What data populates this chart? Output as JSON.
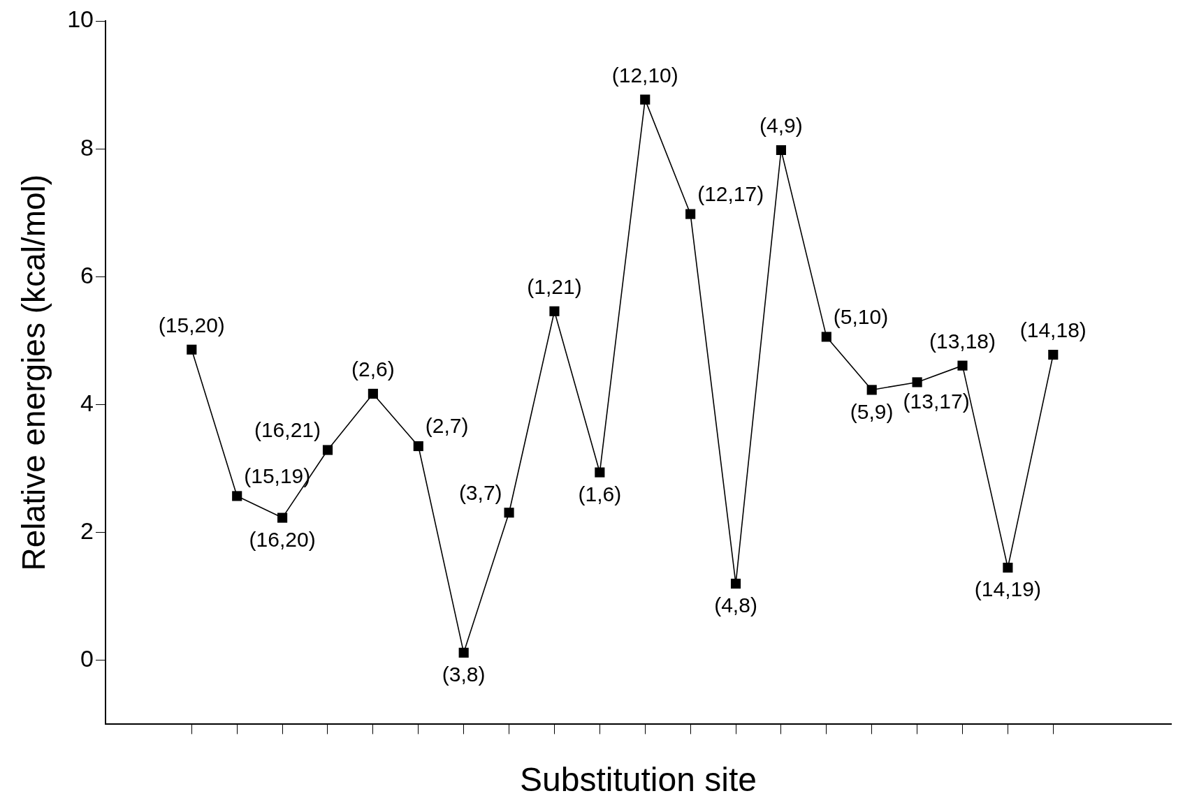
{
  "chart_data": {
    "type": "line",
    "xlabel": "Substitution site",
    "ylabel": "Relative energies (kcal/mol)",
    "categories": [
      null,
      null,
      null,
      null,
      null,
      null,
      null,
      null,
      null,
      null,
      null,
      null,
      null,
      null,
      null,
      null,
      null,
      null,
      null,
      null
    ],
    "annotations": [
      "(15,20)",
      "(15,19)",
      "(16,20)",
      "(16,21)",
      "(2,6)",
      "(2,7)",
      "(3,8)",
      "(3,7)",
      "(1,21)",
      "(1,6)",
      "(12,10)",
      "(12,17)",
      "(4,8)",
      "(4,9)",
      "(5,10)",
      "(5,9)",
      "(13,17)",
      "(13,18)",
      "(14,19)",
      "(14,18)"
    ],
    "series": [
      {
        "color": "#000000",
        "values": [
          4.86,
          2.57,
          2.23,
          3.29,
          4.17,
          3.35,
          0.12,
          2.31,
          5.46,
          2.94,
          8.77,
          6.98,
          1.2,
          7.98,
          5.06,
          4.23,
          4.35,
          4.61,
          1.45,
          4.78
        ]
      }
    ],
    "ylim": [
      -1,
      10
    ],
    "yticks": [
      0,
      2,
      4,
      6,
      8,
      10
    ],
    "tick_labels": "y",
    "marker": "square",
    "line_style": "solid",
    "grid": false,
    "legend": false
  }
}
